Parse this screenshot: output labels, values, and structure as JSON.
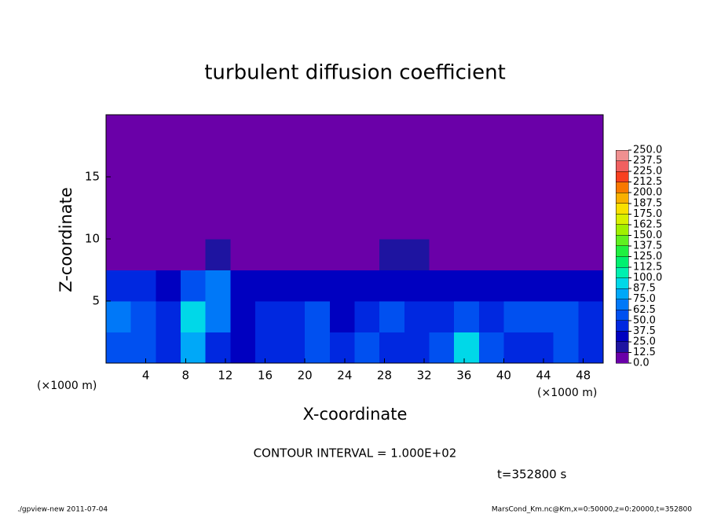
{
  "chart_data": {
    "type": "heatmap",
    "title": "turbulent diffusion coefficient",
    "x_label": "X-coordinate",
    "y_label": "Z-coordinate",
    "x_unit": "(×1000 m)",
    "y_unit": "(×1000 m)",
    "xlim": [
      0,
      50
    ],
    "ylim": [
      0,
      20
    ],
    "xticks": [
      4,
      8,
      12,
      16,
      20,
      24,
      28,
      32,
      36,
      40,
      44,
      48
    ],
    "yticks": [
      5,
      10,
      15
    ],
    "values": [
      [
        50,
        60,
        45,
        75,
        40,
        35,
        40,
        45,
        55,
        45,
        50,
        40,
        40,
        55,
        90,
        50,
        40,
        40,
        60,
        45
      ],
      [
        65,
        55,
        45,
        90,
        70,
        35,
        40,
        40,
        60,
        35,
        40,
        50,
        45,
        40,
        55,
        45,
        60,
        50,
        55,
        40
      ],
      [
        40,
        40,
        35,
        55,
        70,
        30,
        30,
        30,
        30,
        30,
        30,
        35,
        30,
        30,
        30,
        35,
        35,
        30,
        30,
        30
      ],
      [
        10,
        5,
        5,
        10,
        15,
        5,
        5,
        5,
        5,
        5,
        5,
        15,
        20,
        5,
        5,
        5,
        5,
        5,
        5,
        10
      ],
      [
        3,
        3,
        3,
        5,
        5,
        5,
        5,
        8,
        8,
        5,
        5,
        5,
        5,
        5,
        5,
        5,
        5,
        8,
        3,
        3
      ],
      [
        0,
        2,
        2,
        3,
        5,
        5,
        5,
        3,
        2,
        3,
        3,
        2,
        2,
        2,
        0,
        0,
        0,
        0,
        0,
        0
      ],
      [
        0,
        0,
        0,
        0,
        2,
        2,
        0,
        0,
        0,
        0,
        0,
        0,
        0,
        0,
        0,
        0,
        0,
        0,
        0,
        0
      ],
      [
        0,
        0,
        0,
        0,
        0,
        0,
        0,
        0,
        0,
        0,
        0,
        0,
        0,
        0,
        0,
        0,
        0,
        0,
        0,
        0
      ]
    ],
    "levels": [
      {
        "value": 0,
        "label": "0.0"
      },
      {
        "value": 12.5,
        "label": "12.5"
      },
      {
        "value": 25,
        "label": "25.0"
      },
      {
        "value": 37.5,
        "label": "37.5"
      },
      {
        "value": 50,
        "label": "50.0"
      },
      {
        "value": 62.5,
        "label": "62.5"
      },
      {
        "value": 75,
        "label": "75.0"
      },
      {
        "value": 87.5,
        "label": "87.5"
      },
      {
        "value": 100,
        "label": "100.0"
      },
      {
        "value": 112.5,
        "label": "112.5"
      },
      {
        "value": 125,
        "label": "125.0"
      },
      {
        "value": 137.5,
        "label": "137.5"
      },
      {
        "value": 150,
        "label": "150.0"
      },
      {
        "value": 162.5,
        "label": "162.5"
      },
      {
        "value": 175,
        "label": "175.0"
      },
      {
        "value": 187.5,
        "label": "187.5"
      },
      {
        "value": 200,
        "label": "200.0"
      },
      {
        "value": 212.5,
        "label": "212.5"
      },
      {
        "value": 225,
        "label": "225.0"
      },
      {
        "value": 237.5,
        "label": "237.5"
      },
      {
        "value": 250,
        "label": "250.0"
      }
    ],
    "colors": [
      "#6a00a8",
      "#1e14a0",
      "#0000c0",
      "#0028e0",
      "#0050f0",
      "#0078f8",
      "#00a8f8",
      "#00d8e8",
      "#00f0b0",
      "#00f070",
      "#20f040",
      "#60f020",
      "#a0f000",
      "#d8f000",
      "#f8e000",
      "#f8b000",
      "#f87800",
      "#f84020",
      "#f06060",
      "#f09090"
    ],
    "contour_note": "CONTOUR INTERVAL = 1.000E+02",
    "time_note": "t=352800 s",
    "footer_left": "./gpview-new   2011-07-04",
    "footer_right": "MarsCond_Km.nc@Km,x=0:50000,z=0:20000,t=352800"
  }
}
